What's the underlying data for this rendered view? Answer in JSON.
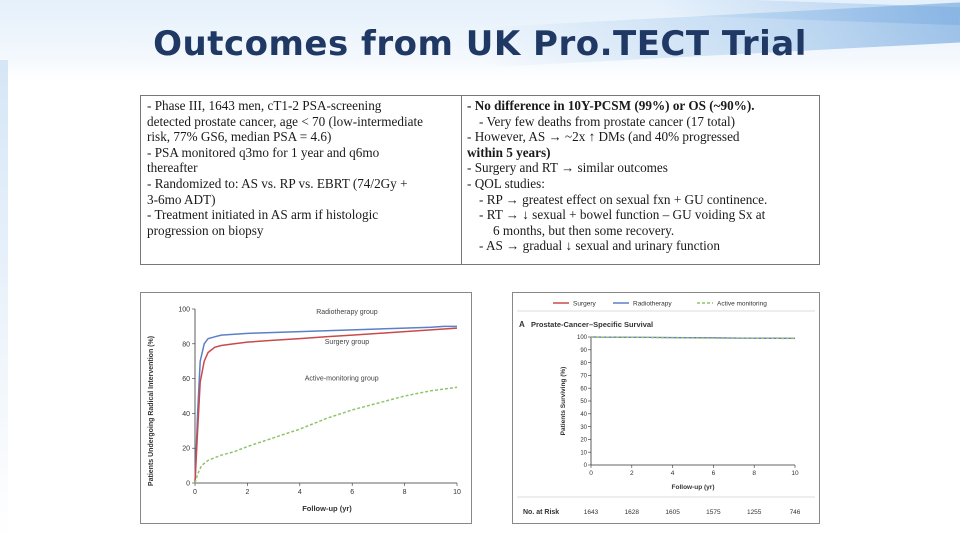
{
  "slide": {
    "title": "Outcomes from UK Pro.TECT Trial"
  },
  "summary": {
    "left_lines": [
      "- Phase III, 1643 men, cT1-2 PSA-screening",
      "detected prostate cancer, age < 70 (low-intermediate",
      "risk, 77% GS6, median PSA = 4.6)",
      "- PSA monitored q3mo for 1 year and q6mo",
      "thereafter",
      "- Randomized to: AS vs. RP vs. EBRT (74/2Gy +",
      "3-6mo ADT)",
      "- Treatment initiated in AS arm if histologic",
      "progression on biopsy"
    ],
    "right_lines": [
      "- No difference in 10Y-PCSM (99%) or OS (~90%).",
      "- Very few deaths from prostate cancer (17 total)",
      "- However, AS → ~2x ↑ DMs (and 40% progressed",
      "within 5 years)",
      "- Surgery and RT → similar outcomes",
      "- QOL studies:",
      "- RP → greatest effect on sexual fxn + GU continence.",
      "- RT → ↓ sexual + bowel function – GU voiding Sx at",
      "6 months, but then some recovery.",
      "- AS → gradual ↓ sexual and urinary function"
    ]
  },
  "chart_data": [
    {
      "type": "line",
      "ylabel": "Patients Undergoing Radical Intervention (%)",
      "xlabel": "Follow-up (yr)",
      "xlim": [
        0,
        10
      ],
      "ylim": [
        0,
        100
      ],
      "xticks": [
        0,
        2,
        4,
        6,
        8,
        10
      ],
      "yticks": [
        0,
        20,
        40,
        60,
        80,
        100
      ],
      "grid": false,
      "series": [
        {
          "name": "Radiotherapy group",
          "color": "#5b7fc9",
          "x": [
            0,
            0.1,
            0.2,
            0.35,
            0.5,
            0.75,
            1,
            1.5,
            2,
            3,
            4,
            5,
            6,
            7,
            8,
            9,
            9.5,
            10
          ],
          "y": [
            0,
            40,
            70,
            80,
            83,
            84,
            85,
            85.5,
            86,
            86.5,
            87,
            87.5,
            88,
            88.5,
            89,
            89.5,
            90,
            90
          ]
        },
        {
          "name": "Surgery group",
          "color": "#c94a4a",
          "x": [
            0,
            0.1,
            0.2,
            0.35,
            0.5,
            0.75,
            1,
            1.5,
            2,
            3,
            4,
            5,
            6,
            7,
            8,
            9,
            10
          ],
          "y": [
            0,
            30,
            58,
            70,
            75,
            78,
            79,
            80,
            81,
            82,
            83,
            84,
            85,
            86,
            87,
            88,
            89
          ]
        },
        {
          "name": "Active-monitoring group",
          "color": "#8fc46a",
          "x": [
            0,
            0.1,
            0.25,
            0.5,
            1,
            1.5,
            2,
            3,
            4,
            5,
            6,
            7,
            8,
            9,
            10
          ],
          "y": [
            0,
            5,
            10,
            13,
            16,
            18,
            21,
            26,
            31,
            37,
            42,
            46,
            50,
            53,
            55
          ]
        }
      ]
    },
    {
      "type": "line",
      "title": "Prostate-Cancer–Specific Survival",
      "panel_label": "A",
      "ylabel": "Patients Surviving (%)",
      "xlabel": "Follow-up (yr)",
      "xlim": [
        0,
        10
      ],
      "ylim": [
        0,
        100
      ],
      "xticks": [
        0,
        2,
        4,
        6,
        8,
        10
      ],
      "yticks": [
        0,
        10,
        20,
        30,
        40,
        50,
        60,
        70,
        80,
        90,
        100
      ],
      "legend": "top",
      "series": [
        {
          "name": "Surgery",
          "color": "#c94a4a",
          "x": [
            0,
            2,
            4,
            6,
            8,
            10
          ],
          "y": [
            100,
            99.8,
            99.5,
            99.3,
            99.1,
            99
          ]
        },
        {
          "name": "Radiotherapy",
          "color": "#5b7fc9",
          "x": [
            0,
            2,
            4,
            6,
            8,
            10
          ],
          "y": [
            100,
            99.8,
            99.6,
            99.3,
            99.1,
            99
          ]
        },
        {
          "name": "Active monitoring",
          "color": "#8fc46a",
          "x": [
            0,
            2,
            4,
            6,
            8,
            10
          ],
          "y": [
            100,
            99.7,
            99.4,
            99.1,
            98.9,
            98.8
          ]
        }
      ],
      "at_risk": {
        "label": "No. at Risk",
        "values": [
          "1643",
          "1628",
          "1605",
          "1575",
          "1255",
          "746"
        ]
      }
    }
  ]
}
